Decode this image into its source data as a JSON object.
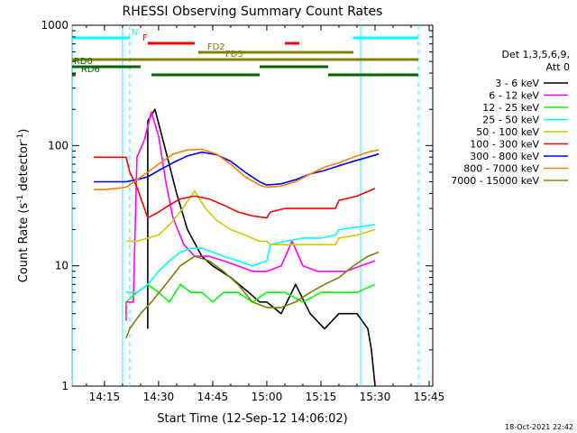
{
  "chart_data": {
    "type": "line",
    "title": "RHESSI Observing Summary Count Rates",
    "xlabel": "Start Time (12-Sep-12 14:06:02)",
    "ylabel": "Count Rate (s⁻¹ detector⁻¹)",
    "ylabel_parts": {
      "main": "Count Rate (s",
      "sup1": "-1",
      "mid": " detector",
      "sup2": "-1",
      "end": ")"
    },
    "y_scale": "log",
    "ylim": [
      1,
      1000
    ],
    "xlim": [
      "14:06:02",
      "15:46:00"
    ],
    "x_ticks": [
      "14:15",
      "14:30",
      "14:45",
      "15:00",
      "15:15",
      "15:30",
      "15:45"
    ],
    "y_ticks": [
      "1",
      "10",
      "100",
      "1000"
    ],
    "grid": false,
    "legend_header": [
      "Det 1,3,5,6,9,",
      "Att 0"
    ],
    "legend_position": "right",
    "timestamp": "18-Oct-2021 22:42",
    "series": [
      {
        "name": "3 - 6 keV",
        "color": "#000000",
        "points": [
          [
            "14:27",
            3
          ],
          [
            "14:27",
            160
          ],
          [
            "14:29",
            200
          ],
          [
            "14:32",
            90
          ],
          [
            "14:35",
            40
          ],
          [
            "14:38",
            20
          ],
          [
            "14:42",
            12
          ],
          [
            "14:45",
            10
          ],
          [
            "14:50",
            8
          ],
          [
            "14:55",
            6
          ],
          [
            "14:58",
            5
          ],
          [
            "15:00",
            5
          ],
          [
            "15:04",
            4
          ],
          [
            "15:08",
            7
          ],
          [
            "15:12",
            4
          ],
          [
            "15:16",
            3
          ],
          [
            "15:20",
            4
          ],
          [
            "15:25",
            4
          ],
          [
            "15:28",
            3
          ],
          [
            "15:29",
            2
          ],
          [
            "15:30",
            1
          ]
        ]
      },
      {
        "name": "6 - 12 keV",
        "color": "#ff00ff",
        "points": [
          [
            "14:21",
            3.5
          ],
          [
            "14:21",
            5
          ],
          [
            "14:23",
            5
          ],
          [
            "14:24",
            80
          ],
          [
            "14:26",
            110
          ],
          [
            "14:28",
            190
          ],
          [
            "14:30",
            120
          ],
          [
            "14:32",
            50
          ],
          [
            "14:34",
            25
          ],
          [
            "14:37",
            15
          ],
          [
            "14:40",
            12
          ],
          [
            "14:44",
            12
          ],
          [
            "14:48",
            11
          ],
          [
            "14:52",
            10
          ],
          [
            "14:56",
            9
          ],
          [
            "15:00",
            9
          ],
          [
            "15:04",
            10
          ],
          [
            "15:07",
            16
          ],
          [
            "15:10",
            10
          ],
          [
            "15:14",
            9
          ],
          [
            "15:18",
            9
          ],
          [
            "15:22",
            9
          ],
          [
            "15:26",
            10
          ],
          [
            "15:30",
            11
          ]
        ]
      },
      {
        "name": "12 - 25 keV",
        "color": "#00ff00",
        "points": [
          [
            "14:21",
            5
          ],
          [
            "14:24",
            6
          ],
          [
            "14:27",
            7
          ],
          [
            "14:30",
            6
          ],
          [
            "14:33",
            5
          ],
          [
            "14:36",
            7
          ],
          [
            "14:39",
            6
          ],
          [
            "14:42",
            6
          ],
          [
            "14:45",
            5
          ],
          [
            "14:48",
            6
          ],
          [
            "14:52",
            6
          ],
          [
            "14:56",
            5
          ],
          [
            "15:00",
            6
          ],
          [
            "15:05",
            6
          ],
          [
            "15:10",
            5
          ],
          [
            "15:15",
            6
          ],
          [
            "15:20",
            6
          ],
          [
            "15:25",
            6
          ],
          [
            "15:30",
            7
          ]
        ]
      },
      {
        "name": "25 - 50 keV",
        "color": "#00ffff",
        "points": [
          [
            "14:21",
            6
          ],
          [
            "14:24",
            6
          ],
          [
            "14:27",
            7
          ],
          [
            "14:30",
            9
          ],
          [
            "14:33",
            11
          ],
          [
            "14:36",
            13
          ],
          [
            "14:39",
            14
          ],
          [
            "14:42",
            14
          ],
          [
            "14:45",
            13
          ],
          [
            "14:48",
            12
          ],
          [
            "14:52",
            11
          ],
          [
            "14:56",
            10
          ],
          [
            "15:00",
            11
          ],
          [
            "15:01",
            15
          ],
          [
            "15:05",
            16
          ],
          [
            "15:10",
            17
          ],
          [
            "15:15",
            17
          ],
          [
            "15:19",
            18
          ],
          [
            "15:20",
            20
          ],
          [
            "15:25",
            21
          ],
          [
            "15:30",
            22
          ]
        ]
      },
      {
        "name": "50 - 100 keV",
        "color": "#cccc00",
        "points": [
          [
            "14:21",
            16
          ],
          [
            "14:24",
            16
          ],
          [
            "14:27",
            17
          ],
          [
            "14:30",
            18
          ],
          [
            "14:33",
            22
          ],
          [
            "14:36",
            28
          ],
          [
            "14:40",
            42
          ],
          [
            "14:43",
            30
          ],
          [
            "14:46",
            24
          ],
          [
            "14:50",
            20
          ],
          [
            "14:54",
            18
          ],
          [
            "14:58",
            16
          ],
          [
            "15:00",
            16
          ],
          [
            "15:01",
            15
          ],
          [
            "15:05",
            15
          ],
          [
            "15:10",
            15
          ],
          [
            "15:15",
            15
          ],
          [
            "15:19",
            15
          ],
          [
            "15:20",
            17
          ],
          [
            "15:25",
            18
          ],
          [
            "15:30",
            20
          ]
        ]
      },
      {
        "name": "100 - 300 keV",
        "color": "#ff0000",
        "points": [
          [
            "14:12",
            80
          ],
          [
            "14:17",
            80
          ],
          [
            "14:21",
            80
          ],
          [
            "14:22",
            60
          ],
          [
            "14:24",
            45
          ],
          [
            "14:27",
            25
          ],
          [
            "14:30",
            28
          ],
          [
            "14:33",
            32
          ],
          [
            "14:36",
            36
          ],
          [
            "14:40",
            38
          ],
          [
            "14:44",
            36
          ],
          [
            "14:48",
            32
          ],
          [
            "14:52",
            28
          ],
          [
            "14:56",
            26
          ],
          [
            "15:00",
            25
          ],
          [
            "15:01",
            28
          ],
          [
            "15:05",
            30
          ],
          [
            "15:10",
            30
          ],
          [
            "15:15",
            30
          ],
          [
            "15:19",
            30
          ],
          [
            "15:20",
            35
          ],
          [
            "15:25",
            38
          ],
          [
            "15:30",
            44
          ]
        ]
      },
      {
        "name": "300 - 800 keV",
        "color": "#0000ff",
        "points": [
          [
            "14:12",
            50
          ],
          [
            "14:15",
            50
          ],
          [
            "14:18",
            50
          ],
          [
            "14:21",
            50
          ],
          [
            "14:24",
            52
          ],
          [
            "14:27",
            55
          ],
          [
            "14:30",
            62
          ],
          [
            "14:34",
            72
          ],
          [
            "14:38",
            82
          ],
          [
            "14:42",
            88
          ],
          [
            "14:46",
            84
          ],
          [
            "14:50",
            74
          ],
          [
            "14:54",
            60
          ],
          [
            "14:58",
            50
          ],
          [
            "15:00",
            47
          ],
          [
            "15:04",
            48
          ],
          [
            "15:08",
            52
          ],
          [
            "15:12",
            58
          ],
          [
            "15:16",
            62
          ],
          [
            "15:20",
            68
          ],
          [
            "15:24",
            74
          ],
          [
            "15:28",
            80
          ],
          [
            "15:31",
            85
          ]
        ]
      },
      {
        "name": "800 - 7000 keV",
        "color": "#ff8000",
        "points": [
          [
            "14:12",
            43
          ],
          [
            "14:15",
            43
          ],
          [
            "14:18",
            44
          ],
          [
            "14:21",
            45
          ],
          [
            "14:24",
            52
          ],
          [
            "14:27",
            60
          ],
          [
            "14:30",
            70
          ],
          [
            "14:34",
            85
          ],
          [
            "14:38",
            92
          ],
          [
            "14:42",
            93
          ],
          [
            "14:46",
            85
          ],
          [
            "14:50",
            70
          ],
          [
            "14:54",
            55
          ],
          [
            "14:58",
            47
          ],
          [
            "15:00",
            45
          ],
          [
            "15:04",
            46
          ],
          [
            "15:08",
            50
          ],
          [
            "15:12",
            58
          ],
          [
            "15:16",
            66
          ],
          [
            "15:20",
            72
          ],
          [
            "15:24",
            80
          ],
          [
            "15:28",
            88
          ],
          [
            "15:31",
            92
          ]
        ]
      },
      {
        "name": "7000 - 15000 keV",
        "color": "#808000",
        "points": [
          [
            "14:21",
            2.5
          ],
          [
            "14:22",
            3
          ],
          [
            "14:25",
            4
          ],
          [
            "14:28",
            5
          ],
          [
            "14:32",
            7
          ],
          [
            "14:36",
            10
          ],
          [
            "14:40",
            12
          ],
          [
            "14:44",
            11
          ],
          [
            "14:48",
            9
          ],
          [
            "14:52",
            7
          ],
          [
            "14:56",
            5
          ],
          [
            "15:00",
            4.5
          ],
          [
            "15:04",
            4.5
          ],
          [
            "15:08",
            5
          ],
          [
            "15:12",
            6
          ],
          [
            "15:16",
            7
          ],
          [
            "15:20",
            8
          ],
          [
            "15:24",
            10
          ],
          [
            "15:28",
            12
          ],
          [
            "15:31",
            13
          ]
        ]
      }
    ],
    "flags": [
      {
        "name": "N",
        "color": "#00ffff",
        "label_at": "14:22",
        "segments": [
          [
            "14:06",
            "14:22"
          ],
          [
            "15:24",
            "15:42"
          ]
        ]
      },
      {
        "name": "F",
        "color": "#ff0000",
        "label_at": "14:25",
        "segments": [
          [
            "14:27",
            "14:40"
          ],
          [
            "15:05",
            "15:09"
          ]
        ]
      },
      {
        "name": "FD2",
        "color": "#808000",
        "label_at": "14:43",
        "segments": [
          [
            "14:41",
            "15:24"
          ]
        ]
      },
      {
        "name": "FD3",
        "color": "#808000",
        "label_at": "14:48",
        "segments": [
          [
            "14:06",
            "15:42"
          ]
        ]
      },
      {
        "name": "RD0",
        "color": "#006400",
        "label_at": "14:06",
        "segments": [
          [
            "14:06",
            "14:25"
          ],
          [
            "14:58",
            "15:17"
          ]
        ]
      },
      {
        "name": "RD6",
        "color": "#006400",
        "label_at": "14:08",
        "segments": [
          [
            "14:06",
            "14:07"
          ],
          [
            "14:28",
            "14:58"
          ],
          [
            "15:17",
            "15:42"
          ]
        ]
      }
    ],
    "vertical_markers": [
      {
        "time": "14:06",
        "color": "#00ffff",
        "style": "solid"
      },
      {
        "time": "14:20",
        "color": "#00ffff",
        "style": "solid"
      },
      {
        "time": "14:22",
        "color": "#00ffff",
        "style": "dashed"
      },
      {
        "time": "15:26",
        "color": "#00ffff",
        "style": "solid"
      },
      {
        "time": "15:42",
        "color": "#00ffff",
        "style": "dashed"
      }
    ]
  }
}
